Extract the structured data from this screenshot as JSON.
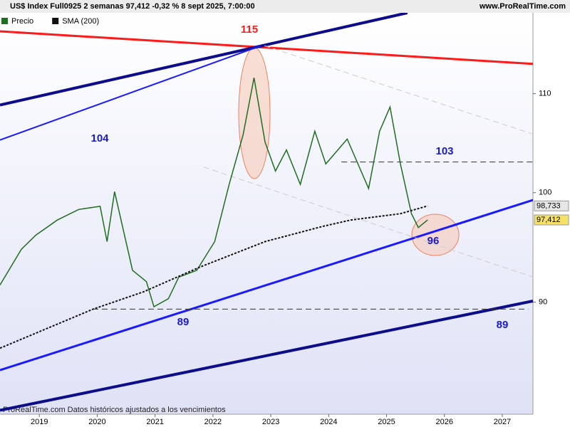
{
  "chart_data": {
    "type": "line",
    "title": "US$ Index Full0925 2 semanas 97,412 -0,32 % 8 sept 2025, 7:00:00",
    "source": "www.ProRealTime.com",
    "footnote": "ProRealTime.com  Datos históricos ajustados a los vencimientos",
    "yscale": "log",
    "xlim": [
      2018.32,
      2027.53
    ],
    "ylim": [
      80.8,
      118.9
    ],
    "xticks": [
      2019,
      2020,
      2021,
      2022,
      2023,
      2024,
      2025,
      2026,
      2027
    ],
    "yticks": [
      90,
      100,
      110
    ],
    "series": [
      {
        "name": "Precio",
        "color": "#1f6e1f",
        "x": [
          2018.32,
          2018.69,
          2018.94,
          2019.31,
          2019.68,
          2020.05,
          2020.17,
          2020.3,
          2020.61,
          2020.85,
          2020.98,
          2021.23,
          2021.41,
          2021.72,
          2022.03,
          2022.28,
          2022.52,
          2022.71,
          2022.9,
          2023.08,
          2023.27,
          2023.51,
          2023.76,
          2023.95,
          2024.32,
          2024.69,
          2024.88,
          2025.06,
          2025.24,
          2025.43,
          2025.55,
          2025.71
        ],
        "values": [
          91.5,
          94.7,
          96.0,
          97.4,
          98.4,
          98.7,
          95.4,
          100.1,
          92.8,
          91.8,
          89.6,
          90.3,
          92.2,
          92.8,
          95.4,
          100.8,
          105.7,
          111.7,
          105.0,
          102.1,
          104.2,
          100.8,
          106.1,
          102.8,
          105.3,
          100.4,
          106.1,
          108.6,
          102.8,
          98.0,
          96.7,
          97.412
        ],
        "value_labels": [
          null,
          null,
          null,
          null,
          null,
          null,
          null,
          null,
          null,
          null,
          null,
          null,
          null,
          null,
          null,
          null,
          null,
          null,
          null,
          null,
          null,
          null,
          null,
          null,
          null,
          null,
          null,
          null,
          null,
          null,
          null,
          "97,412"
        ],
        "label_color": "#f5e16a"
      },
      {
        "name": "SMA (200)",
        "color": "#111111",
        "dashed": true,
        "x": [
          2018.32,
          2019.93,
          2020.8,
          2021.78,
          2022.9,
          2023.89,
          2024.38,
          2025.24,
          2025.71
        ],
        "values": [
          86.1,
          89.4,
          90.9,
          93.1,
          95.4,
          96.8,
          97.4,
          98.0,
          98.733
        ],
        "value_labels": [
          null,
          null,
          null,
          null,
          null,
          null,
          null,
          null,
          "98,733"
        ],
        "label_color": "#e6e6e6"
      }
    ],
    "lines": [
      {
        "x": [
          2018.32,
          2027.53
        ],
        "y": [
          116.8,
          113.2
        ],
        "color": "#ff1a1a",
        "width": 3
      },
      {
        "x": [
          2018.32,
          2025.36
        ],
        "y": [
          108.8,
          118.9
        ],
        "color": "#0d0d8c",
        "width": 4
      },
      {
        "x": [
          2018.32,
          2022.83
        ],
        "y": [
          105.2,
          115.2
        ],
        "color": "#1a1aff",
        "width": 2
      },
      {
        "x": [
          2018.32,
          2027.53
        ],
        "y": [
          84.3,
          99.3
        ],
        "color": "#1a1aff",
        "width": 3
      },
      {
        "x": [
          2018.32,
          2027.53
        ],
        "y": [
          81.1,
          90.1
        ],
        "color": "#0d0d8c",
        "width": 4
      },
      {
        "x": [
          2024.22,
          2027.53
        ],
        "y": [
          103,
          103
        ],
        "color": "#333333",
        "width": 1,
        "dashed": true
      },
      {
        "x": [
          2019.92,
          2027.45
        ],
        "y": [
          89.4,
          89.4
        ],
        "color": "#333333",
        "width": 1,
        "dashed": true
      },
      {
        "x": [
          2021.84,
          2027.53
        ],
        "y": [
          102.5,
          92.2
        ],
        "color": "#cccccc",
        "width": 1,
        "dashed": true
      },
      {
        "x": [
          2022.89,
          2027.53
        ],
        "y": [
          115.2,
          105.8
        ],
        "color": "#cccccc",
        "width": 1,
        "dashed": true
      }
    ],
    "annotations": [
      {
        "text": "115",
        "color": "#ff1a1a"
      },
      {
        "text": "104",
        "color": "#1a1acc"
      },
      {
        "text": "103",
        "color": "#1a1acc"
      },
      {
        "text": "96",
        "color": "#1a1acc"
      },
      {
        "text": "89",
        "color": "#1a1acc"
      },
      {
        "text": "89",
        "color": "#1a1acc"
      }
    ]
  }
}
